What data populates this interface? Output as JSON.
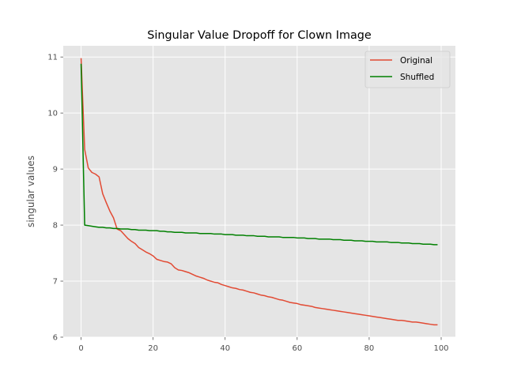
{
  "chart_data": {
    "type": "line",
    "title": "Singular Value Dropoff for Clown Image",
    "xlabel": "",
    "ylabel": "singular values",
    "xlim": [
      -4.95,
      103.95
    ],
    "ylim": [
      6.0,
      11.2
    ],
    "xticks": [
      0,
      20,
      40,
      60,
      80,
      100
    ],
    "yticks": [
      6,
      7,
      8,
      9,
      10,
      11
    ],
    "grid": true,
    "legend_position": "top-right",
    "background_color": "#e5e5e5",
    "series": [
      {
        "name": "Original",
        "color": "#e24a33",
        "x": [
          0,
          1,
          2,
          3,
          4,
          5,
          6,
          7,
          8,
          9,
          10,
          11,
          12,
          13,
          14,
          15,
          16,
          17,
          18,
          19,
          20,
          21,
          22,
          23,
          24,
          25,
          26,
          27,
          28,
          29,
          30,
          31,
          32,
          33,
          34,
          35,
          36,
          37,
          38,
          39,
          40,
          41,
          42,
          43,
          44,
          45,
          46,
          47,
          48,
          49,
          50,
          51,
          52,
          53,
          54,
          55,
          56,
          57,
          58,
          59,
          60,
          61,
          62,
          63,
          64,
          65,
          66,
          67,
          68,
          69,
          70,
          71,
          72,
          73,
          74,
          75,
          76,
          77,
          78,
          79,
          80,
          81,
          82,
          83,
          84,
          85,
          86,
          87,
          88,
          89,
          90,
          91,
          92,
          93,
          94,
          95,
          96,
          97,
          98,
          99
        ],
        "values": [
          10.98,
          9.35,
          9.02,
          8.94,
          8.91,
          8.86,
          8.56,
          8.4,
          8.25,
          8.13,
          7.93,
          7.9,
          7.83,
          7.76,
          7.71,
          7.67,
          7.6,
          7.56,
          7.52,
          7.49,
          7.45,
          7.39,
          7.37,
          7.35,
          7.34,
          7.31,
          7.24,
          7.2,
          7.19,
          7.17,
          7.15,
          7.12,
          7.09,
          7.07,
          7.05,
          7.02,
          7.0,
          6.98,
          6.97,
          6.94,
          6.92,
          6.9,
          6.88,
          6.87,
          6.85,
          6.84,
          6.82,
          6.8,
          6.79,
          6.77,
          6.75,
          6.74,
          6.72,
          6.71,
          6.69,
          6.67,
          6.66,
          6.64,
          6.62,
          6.61,
          6.6,
          6.58,
          6.57,
          6.56,
          6.55,
          6.53,
          6.52,
          6.51,
          6.5,
          6.49,
          6.48,
          6.47,
          6.46,
          6.45,
          6.44,
          6.43,
          6.42,
          6.41,
          6.4,
          6.39,
          6.38,
          6.37,
          6.36,
          6.35,
          6.34,
          6.33,
          6.32,
          6.31,
          6.3,
          6.3,
          6.29,
          6.28,
          6.27,
          6.27,
          6.26,
          6.25,
          6.24,
          6.23,
          6.22,
          6.22
        ]
      },
      {
        "name": "Shuffled",
        "color": "#008000",
        "x": [
          0,
          1,
          2,
          3,
          4,
          5,
          6,
          7,
          8,
          9,
          10,
          11,
          12,
          13,
          14,
          15,
          16,
          17,
          18,
          19,
          20,
          21,
          22,
          23,
          24,
          25,
          26,
          27,
          28,
          29,
          30,
          31,
          32,
          33,
          34,
          35,
          36,
          37,
          38,
          39,
          40,
          41,
          42,
          43,
          44,
          45,
          46,
          47,
          48,
          49,
          50,
          51,
          52,
          53,
          54,
          55,
          56,
          57,
          58,
          59,
          60,
          61,
          62,
          63,
          64,
          65,
          66,
          67,
          68,
          69,
          70,
          71,
          72,
          73,
          74,
          75,
          76,
          77,
          78,
          79,
          80,
          81,
          82,
          83,
          84,
          85,
          86,
          87,
          88,
          89,
          90,
          91,
          92,
          93,
          94,
          95,
          96,
          97,
          98,
          99
        ],
        "values": [
          10.88,
          8.0,
          7.99,
          7.98,
          7.97,
          7.96,
          7.96,
          7.95,
          7.95,
          7.94,
          7.94,
          7.93,
          7.93,
          7.93,
          7.92,
          7.92,
          7.91,
          7.91,
          7.91,
          7.9,
          7.9,
          7.9,
          7.89,
          7.89,
          7.88,
          7.88,
          7.87,
          7.87,
          7.87,
          7.86,
          7.86,
          7.86,
          7.86,
          7.85,
          7.85,
          7.85,
          7.85,
          7.84,
          7.84,
          7.84,
          7.83,
          7.83,
          7.83,
          7.82,
          7.82,
          7.82,
          7.81,
          7.81,
          7.81,
          7.8,
          7.8,
          7.8,
          7.79,
          7.79,
          7.79,
          7.79,
          7.78,
          7.78,
          7.78,
          7.78,
          7.77,
          7.77,
          7.77,
          7.76,
          7.76,
          7.76,
          7.75,
          7.75,
          7.75,
          7.75,
          7.74,
          7.74,
          7.74,
          7.73,
          7.73,
          7.73,
          7.72,
          7.72,
          7.72,
          7.71,
          7.71,
          7.71,
          7.7,
          7.7,
          7.7,
          7.7,
          7.69,
          7.69,
          7.69,
          7.68,
          7.68,
          7.68,
          7.67,
          7.67,
          7.67,
          7.66,
          7.66,
          7.66,
          7.65,
          7.65
        ]
      }
    ]
  }
}
